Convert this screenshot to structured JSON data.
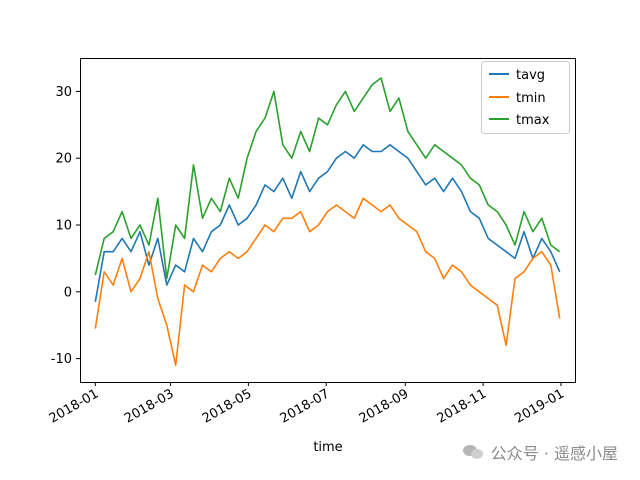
{
  "chart_data": {
    "type": "line",
    "xlabel": "time",
    "ylabel": "",
    "xlim": [
      "2017-12-20",
      "2019-01-12"
    ],
    "ylim": [
      -13.5,
      35
    ],
    "yticks": [
      -10,
      0,
      10,
      20,
      30
    ],
    "xticks": [
      {
        "date": "2018-01-01",
        "label": "2018-01"
      },
      {
        "date": "2018-03-01",
        "label": "2018-03"
      },
      {
        "date": "2018-05-01",
        "label": "2018-05"
      },
      {
        "date": "2018-07-01",
        "label": "2018-07"
      },
      {
        "date": "2018-09-01",
        "label": "2018-09"
      },
      {
        "date": "2018-11-01",
        "label": "2018-11"
      },
      {
        "date": "2019-01-01",
        "label": "2019-01"
      }
    ],
    "legend_position": "top-right",
    "x_sample_dates": [
      "2018-01-01",
      "2018-01-08",
      "2018-01-15",
      "2018-01-22",
      "2018-01-29",
      "2018-02-05",
      "2018-02-12",
      "2018-02-19",
      "2018-02-26",
      "2018-03-05",
      "2018-03-12",
      "2018-03-19",
      "2018-03-26",
      "2018-04-02",
      "2018-04-09",
      "2018-04-16",
      "2018-04-23",
      "2018-04-30",
      "2018-05-07",
      "2018-05-14",
      "2018-05-21",
      "2018-05-28",
      "2018-06-04",
      "2018-06-11",
      "2018-06-18",
      "2018-06-25",
      "2018-07-02",
      "2018-07-09",
      "2018-07-16",
      "2018-07-23",
      "2018-07-30",
      "2018-08-06",
      "2018-08-13",
      "2018-08-20",
      "2018-08-27",
      "2018-09-03",
      "2018-09-10",
      "2018-09-17",
      "2018-09-24",
      "2018-10-01",
      "2018-10-08",
      "2018-10-15",
      "2018-10-22",
      "2018-10-29",
      "2018-11-05",
      "2018-11-12",
      "2018-11-19",
      "2018-11-26",
      "2018-12-03",
      "2018-12-10",
      "2018-12-17",
      "2018-12-24",
      "2018-12-31"
    ],
    "series": [
      {
        "name": "tavg",
        "color": "#1f77b4",
        "values": [
          -1.5,
          6,
          6,
          8,
          6,
          9,
          4,
          8,
          1,
          4,
          3,
          8,
          6,
          9,
          10,
          13,
          10,
          11,
          13,
          16,
          15,
          17,
          14,
          18,
          15,
          17,
          18,
          20,
          21,
          20,
          22,
          21,
          21,
          22,
          21,
          20,
          18,
          16,
          17,
          15,
          17,
          15,
          12,
          11,
          8,
          7,
          6,
          5,
          9,
          5,
          8,
          6,
          3
        ]
      },
      {
        "name": "tmin",
        "color": "#ff7f0e",
        "values": [
          -5.5,
          3,
          1,
          5,
          0,
          2,
          6,
          -1,
          -5,
          -11,
          1,
          0,
          4,
          3,
          5,
          6,
          5,
          6,
          8,
          10,
          9,
          11,
          11,
          12,
          9,
          10,
          12,
          13,
          12,
          11,
          14,
          13,
          12,
          13,
          11,
          10,
          9,
          6,
          5,
          2,
          4,
          3,
          1,
          0,
          -1,
          -2,
          -8,
          2,
          3,
          5,
          6,
          4,
          -4
        ]
      },
      {
        "name": "tmax",
        "color": "#2ca02c",
        "values": [
          2.5,
          8,
          9,
          12,
          8,
          10,
          7,
          14,
          2,
          10,
          8,
          19,
          11,
          14,
          12,
          17,
          14,
          20,
          24,
          26,
          30,
          22,
          20,
          24,
          21,
          26,
          25,
          28,
          30,
          27,
          29,
          31,
          32,
          27,
          29,
          24,
          22,
          20,
          22,
          21,
          20,
          19,
          17,
          16,
          13,
          12,
          10,
          7,
          12,
          9,
          11,
          7,
          6
        ]
      }
    ]
  },
  "watermark": {
    "text": "公众号 · 遥感小屋",
    "icon": "wechat-icon"
  }
}
